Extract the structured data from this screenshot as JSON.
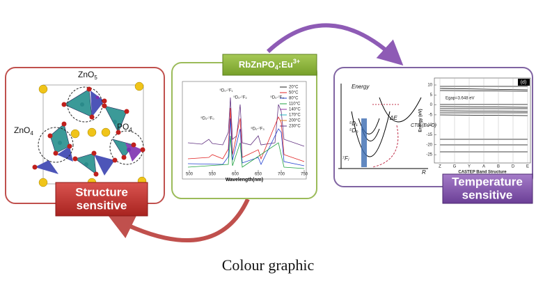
{
  "title_tag": {
    "text": "RbZnPO",
    "sub": "4",
    "mid": ":Eu",
    "sup": "3+"
  },
  "structure": {
    "labels": [
      {
        "text": "ZnO",
        "sub": "5"
      },
      {
        "text": "ZnO",
        "sub": "4"
      },
      {
        "text": "PO",
        "sub": "4"
      }
    ],
    "badge": [
      "Structure",
      "sensitive"
    ]
  },
  "spectrum": {
    "xlabel": "Wavelength(nm)",
    "xticks": [
      500,
      550,
      600,
      650,
      700,
      750
    ],
    "legend": [
      {
        "name": "20°C",
        "color": "#222222"
      },
      {
        "name": "50°C",
        "color": "#e02020"
      },
      {
        "name": "80°C",
        "color": "#2040d0"
      },
      {
        "name": "110°C",
        "color": "#20a040"
      },
      {
        "name": "140°C",
        "color": "#9030a0"
      },
      {
        "name": "170°C",
        "color": "#20b0c0"
      },
      {
        "name": "200°C",
        "color": "#e08020"
      },
      {
        "name": "230°C",
        "color": "#603080"
      }
    ],
    "peaks": [
      "⁵D₂-⁷F₀",
      "⁵D₀-⁷F₁",
      "⁵D₀-⁷F₂",
      "⁵D₀-⁷F₃",
      "⁵D₀-⁷F₄"
    ]
  },
  "energy_diagram": {
    "labels": [
      "Energy",
      "⁵D₁",
      "⁵D₀",
      "⁷Fⱼ",
      "ΔE",
      "CTB (Eu-O)",
      "R"
    ]
  },
  "band_structure": {
    "ylabel": "Energy (eV)",
    "yticks": [
      10,
      5,
      0,
      -5,
      -10,
      -15,
      -20,
      -25
    ],
    "kpoints": [
      "Z",
      "G",
      "Y",
      "A",
      "B",
      "D",
      "E"
    ],
    "gap": "Egap=3.648 eV",
    "panel": "(d)",
    "xlabel": "CASTEP Band Structure"
  },
  "temperature_badge": [
    "Temperature",
    "sensitive"
  ],
  "caption": "Colour graphic"
}
